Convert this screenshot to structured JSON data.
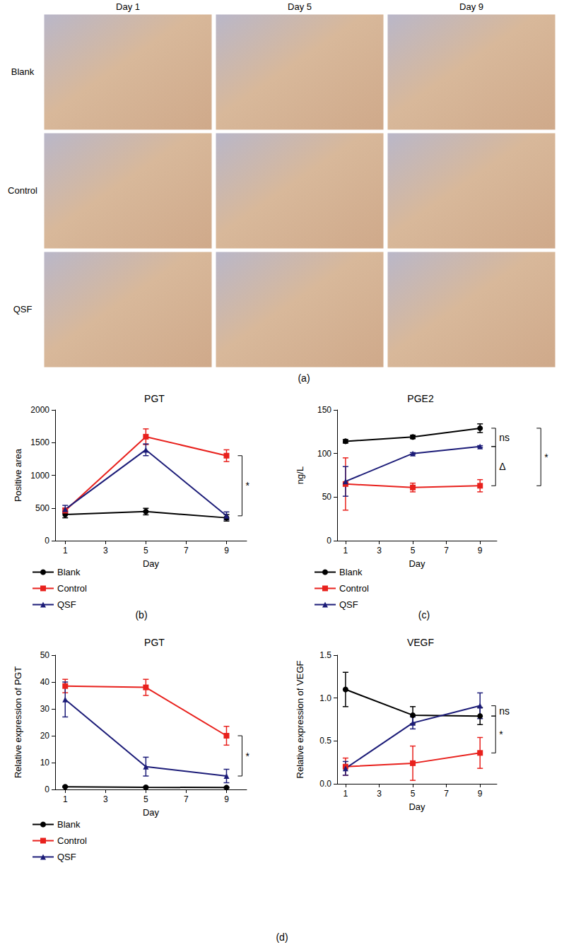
{
  "image_panel": {
    "panel": "(a)",
    "column_labels": [
      "Day 1",
      "Day 5",
      "Day 9"
    ],
    "row_labels": [
      "Blank",
      "Control",
      "QSF"
    ]
  },
  "chart_data": [
    {
      "type": "line",
      "title": "PGT",
      "panel": "(b)",
      "x_label": "Day",
      "y_label": "Positive area",
      "x": [
        1,
        5,
        9
      ],
      "xlim": [
        0.5,
        10
      ],
      "xticks": [
        1,
        3,
        5,
        7,
        9
      ],
      "ylim": [
        0,
        2000
      ],
      "yticks": [
        0,
        500,
        1000,
        1500,
        2000
      ],
      "grid": false,
      "legend": "bottom",
      "series": [
        {
          "name": "Blank",
          "color": "#000000",
          "marker": "circle",
          "values": [
            400,
            445,
            350
          ],
          "errors": [
            50,
            50,
            50
          ]
        },
        {
          "name": "Control",
          "color": "#e8211d",
          "marker": "square",
          "values": [
            460,
            1590,
            1300
          ],
          "errors": [
            40,
            120,
            90
          ]
        },
        {
          "name": "QSF",
          "color": "#1c1c78",
          "marker": "triangle",
          "values": [
            480,
            1390,
            380
          ],
          "errors": [
            60,
            90,
            60
          ]
        }
      ],
      "annotations": [
        {
          "text": "*",
          "between": [
            "Control",
            "QSF"
          ]
        }
      ]
    },
    {
      "type": "line",
      "title": "PGE2",
      "panel": "(c)",
      "x_label": "Day",
      "y_label": "ng/L",
      "x": [
        1,
        5,
        9
      ],
      "xlim": [
        0.5,
        10
      ],
      "xticks": [
        1,
        3,
        5,
        7,
        9
      ],
      "ylim": [
        0,
        150
      ],
      "yticks": [
        0,
        50,
        100,
        150
      ],
      "grid": false,
      "legend": "bottom",
      "series": [
        {
          "name": "Blank",
          "color": "#000000",
          "marker": "circle",
          "values": [
            114,
            119,
            129
          ],
          "errors": [
            2,
            2,
            5
          ]
        },
        {
          "name": "Control",
          "color": "#e8211d",
          "marker": "square",
          "values": [
            65,
            61,
            63
          ],
          "errors": [
            30,
            5,
            7
          ]
        },
        {
          "name": "QSF",
          "color": "#1c1c78",
          "marker": "triangle",
          "values": [
            68,
            100,
            108
          ],
          "errors": [
            17,
            1,
            1
          ]
        }
      ],
      "annotations": [
        {
          "text": "ns",
          "between": [
            "Blank",
            "QSF"
          ]
        },
        {
          "text": "Δ",
          "between": [
            "QSF",
            "Control"
          ]
        },
        {
          "text": "*",
          "between": [
            "Blank",
            "Control"
          ]
        }
      ]
    },
    {
      "type": "line",
      "title": "PGT",
      "panel": "(d)",
      "x_label": "Day",
      "y_label": "Relative expression of PGT",
      "x": [
        1,
        5,
        9
      ],
      "xlim": [
        0.5,
        10
      ],
      "xticks": [
        1,
        3,
        5,
        7,
        9
      ],
      "ylim": [
        0,
        50
      ],
      "yticks": [
        0,
        10,
        20,
        30,
        40,
        50
      ],
      "grid": false,
      "legend": "bottom",
      "series": [
        {
          "name": "Blank",
          "color": "#000000",
          "marker": "circle",
          "values": [
            1,
            0.8,
            0.7
          ],
          "errors": [
            0.2,
            0.2,
            0.2
          ]
        },
        {
          "name": "Control",
          "color": "#e8211d",
          "marker": "square",
          "values": [
            38.5,
            38,
            20
          ],
          "errors": [
            2.5,
            3,
            3.5
          ]
        },
        {
          "name": "QSF",
          "color": "#1c1c78",
          "marker": "triangle",
          "values": [
            33.5,
            8.5,
            5
          ],
          "errors": [
            6.5,
            3.5,
            2.5
          ]
        }
      ],
      "annotations": [
        {
          "text": "*",
          "between": [
            "Control",
            "QSF"
          ]
        }
      ]
    },
    {
      "type": "line",
      "title": "VEGF",
      "x_label": "Day",
      "y_label": "Relative expression of VEGF",
      "x": [
        1,
        5,
        9
      ],
      "xlim": [
        0.5,
        10
      ],
      "xticks": [
        1,
        3,
        5,
        7,
        9
      ],
      "ylim": [
        0,
        1.5
      ],
      "yticks": [
        {
          "value": 0,
          "label": "0.0"
        },
        0.5,
        {
          "value": 1,
          "label": "1.0"
        },
        1.5
      ],
      "grid": false,
      "series": [
        {
          "name": "Blank",
          "color": "#000000",
          "marker": "circle",
          "values": [
            1.1,
            0.8,
            0.79
          ],
          "errors": [
            0.2,
            0.1,
            0.1
          ]
        },
        {
          "name": "Control",
          "color": "#e8211d",
          "marker": "square",
          "values": [
            0.2,
            0.24,
            0.36
          ],
          "errors": [
            0.1,
            0.2,
            0.18
          ]
        },
        {
          "name": "QSF",
          "color": "#1c1c78",
          "marker": "triangle",
          "values": [
            0.18,
            0.71,
            0.91
          ],
          "errors": [
            0.08,
            0.07,
            0.15
          ]
        }
      ],
      "annotations": [
        {
          "text": "ns",
          "between": [
            "Blank",
            "QSF"
          ]
        },
        {
          "text": "*",
          "between": [
            "Blank",
            "Control"
          ]
        }
      ]
    }
  ]
}
